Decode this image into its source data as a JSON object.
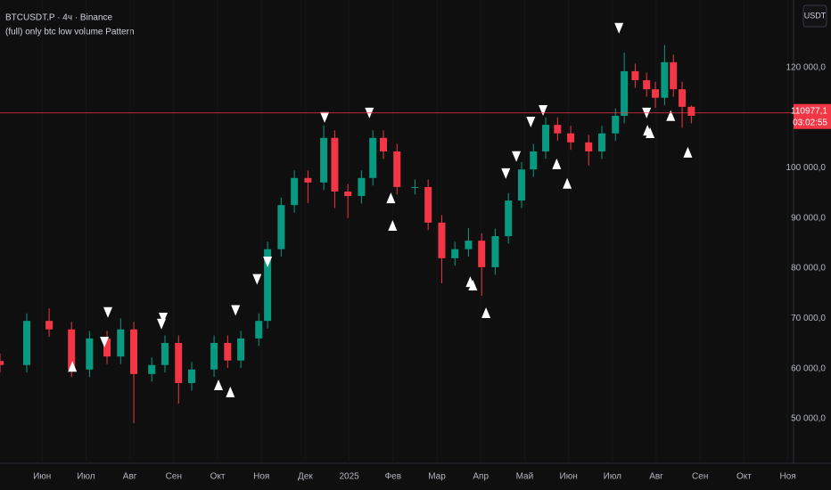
{
  "chart_data": {
    "type": "candlestick",
    "title": "BTCUSDT.P · 4ч · Binance",
    "subtitle": "(full) only btc low volume Pattern",
    "currency_button": "USDT",
    "up_color": "#089981",
    "down_color": "#f23645",
    "marker_color": "#ffffff",
    "xlim": [
      -0.96,
      17.13
    ],
    "ylim": [
      41100,
      133500
    ],
    "xticks": [
      {
        "value": 0,
        "label": "Июн"
      },
      {
        "value": 1,
        "label": "Июл"
      },
      {
        "value": 2,
        "label": "Авг"
      },
      {
        "value": 3,
        "label": "Сен"
      },
      {
        "value": 4,
        "label": "Окт"
      },
      {
        "value": 5,
        "label": "Ноя"
      },
      {
        "value": 6,
        "label": "Дек"
      },
      {
        "value": 7,
        "label": "2025"
      },
      {
        "value": 8,
        "label": "Фев"
      },
      {
        "value": 9,
        "label": "Мар"
      },
      {
        "value": 10,
        "label": "Апр"
      },
      {
        "value": 11,
        "label": "Май"
      },
      {
        "value": 12,
        "label": "Июн"
      },
      {
        "value": 13,
        "label": "Июл"
      },
      {
        "value": 14,
        "label": "Авг"
      },
      {
        "value": 15,
        "label": "Сен"
      },
      {
        "value": 16,
        "label": "Окт"
      },
      {
        "value": 17,
        "label": "Ноя"
      }
    ],
    "yticks": [
      {
        "value": 50000,
        "label": "50 000,0"
      },
      {
        "value": 60000,
        "label": "60 000,0"
      },
      {
        "value": 70000,
        "label": "70 000,0"
      },
      {
        "value": 80000,
        "label": "80 000,0"
      },
      {
        "value": 90000,
        "label": "90 000,0"
      },
      {
        "value": 100000,
        "label": "100 000,0"
      },
      {
        "value": 120000,
        "label": "120 000,0"
      }
    ],
    "x": [
      -0.96,
      -0.35,
      0.16,
      0.67,
      1.08,
      1.48,
      1.79,
      2.09,
      2.5,
      2.8,
      3.11,
      3.41,
      3.92,
      4.23,
      4.53,
      4.94,
      5.14,
      5.45,
      5.75,
      6.06,
      6.42,
      6.67,
      6.97,
      7.28,
      7.54,
      7.78,
      8.09,
      8.5,
      8.8,
      9.11,
      9.41,
      9.72,
      10.02,
      10.33,
      10.63,
      10.93,
      11.2,
      11.48,
      11.75,
      12.05,
      12.46,
      12.76,
      13.07,
      13.27,
      13.52,
      13.78,
      13.98,
      14.19,
      14.39,
      14.59,
      14.8
    ],
    "open": [
      61500,
      60700,
      69500,
      67800,
      59800,
      66000,
      62400,
      67800,
      58900,
      60700,
      65100,
      57100,
      59800,
      65100,
      61600,
      66000,
      69500,
      83800,
      92600,
      98000,
      97100,
      106000,
      95300,
      94400,
      98000,
      106000,
      103300,
      96200,
      96200,
      89100,
      82000,
      83800,
      85500,
      80200,
      86400,
      93500,
      99700,
      103300,
      108600,
      106900,
      105100,
      103300,
      106900,
      110400,
      119300,
      117500,
      115700,
      114000,
      121100,
      115700,
      112200
    ],
    "high": [
      63000,
      71000,
      72000,
      69300,
      67500,
      67500,
      70000,
      69300,
      62200,
      66600,
      66600,
      61300,
      66600,
      66600,
      67500,
      71000,
      85300,
      94100,
      99500,
      99500,
      108500,
      107500,
      96800,
      99500,
      107500,
      107500,
      104800,
      97700,
      97700,
      90600,
      85300,
      88000,
      87000,
      87900,
      95000,
      101200,
      104800,
      110100,
      110100,
      108400,
      106600,
      108400,
      111900,
      123000,
      120800,
      119000,
      117200,
      124500,
      122600,
      117200,
      112500
    ],
    "low": [
      59200,
      59200,
      66300,
      58300,
      58300,
      60900,
      60900,
      49100,
      57400,
      59200,
      53000,
      55600,
      58300,
      60100,
      60100,
      64500,
      68000,
      82300,
      91100,
      93000,
      95600,
      92000,
      90000,
      92900,
      96500,
      101800,
      94700,
      94700,
      87600,
      77000,
      80500,
      82300,
      74500,
      78700,
      84900,
      92000,
      98200,
      101800,
      105400,
      103600,
      100500,
      101800,
      105400,
      108900,
      116000,
      114200,
      112000,
      112500,
      114200,
      108000,
      108900
    ],
    "close": [
      60700,
      69500,
      67800,
      59800,
      66000,
      62400,
      67800,
      58900,
      60700,
      65100,
      57100,
      59800,
      65100,
      61600,
      66000,
      69500,
      83800,
      92600,
      98000,
      97100,
      106000,
      95300,
      94400,
      98000,
      106000,
      103300,
      96200,
      96200,
      89100,
      82000,
      83800,
      85500,
      80200,
      86400,
      93500,
      99700,
      103300,
      108600,
      106900,
      105100,
      103300,
      106900,
      110400,
      119300,
      117500,
      115700,
      114000,
      121100,
      115700,
      112200,
      110400
    ],
    "signals_down": {
      "x": [
        1.5,
        1.42,
        2.76,
        2.72,
        4.41,
        4.9,
        5.14,
        6.44,
        7.46,
        10.57,
        10.81,
        11.14,
        11.42,
        13.15,
        13.78
      ],
      "y": [
        70100,
        64200,
        69000,
        67800,
        70500,
        76700,
        80200,
        109000,
        109900,
        97800,
        101200,
        108100,
        110400,
        126800,
        109900
      ]
    },
    "signals_up": {
      "x": [
        0.69,
        4.02,
        4.29,
        7.95,
        7.99,
        9.76,
        9.82,
        10.12,
        11.73,
        11.97,
        13.8,
        13.86,
        14.33,
        14.72
      ],
      "y": [
        61500,
        57800,
        56400,
        95100,
        89600,
        78400,
        77700,
        72200,
        101900,
        98000,
        108600,
        108100,
        111500,
        104200
      ]
    },
    "last_price": {
      "value": 110977.1,
      "label": "110977,1"
    },
    "countdown": "03:02:55"
  }
}
